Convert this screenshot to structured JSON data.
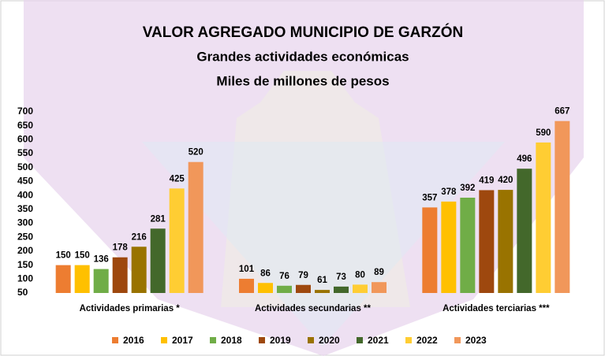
{
  "chart_data": {
    "type": "bar",
    "title": "VALOR AGREGADO MUNICIPIO DE GARZÓN",
    "subtitle": [
      "Grandes actividades económicas",
      "Miles de millones de pesos"
    ],
    "categories": [
      "Actividades primarias *",
      "Actividades secundarias **",
      "Actividades terciarias ***"
    ],
    "series": [
      {
        "name": "2016",
        "color": "#ed7d31",
        "values": [
          150,
          101,
          357
        ]
      },
      {
        "name": "2017",
        "color": "#ffc000",
        "values": [
          150,
          86,
          378
        ]
      },
      {
        "name": "2018",
        "color": "#70ad47",
        "values": [
          136,
          76,
          392
        ]
      },
      {
        "name": "2019",
        "color": "#9e480e",
        "values": [
          178,
          79,
          419
        ]
      },
      {
        "name": "2020",
        "color": "#997300",
        "values": [
          216,
          61,
          420
        ]
      },
      {
        "name": "2021",
        "color": "#43682b",
        "values": [
          281,
          73,
          496
        ]
      },
      {
        "name": "2022",
        "color": "#ffcd33",
        "values": [
          425,
          80,
          590
        ]
      },
      {
        "name": "2023",
        "color": "#f1975a",
        "values": [
          520,
          89,
          667
        ]
      }
    ],
    "ylim": [
      50,
      700
    ],
    "yticks": [
      50,
      100,
      150,
      200,
      250,
      300,
      350,
      400,
      450,
      500,
      550,
      600,
      650,
      700
    ],
    "grid": false,
    "legend": "bottom"
  }
}
